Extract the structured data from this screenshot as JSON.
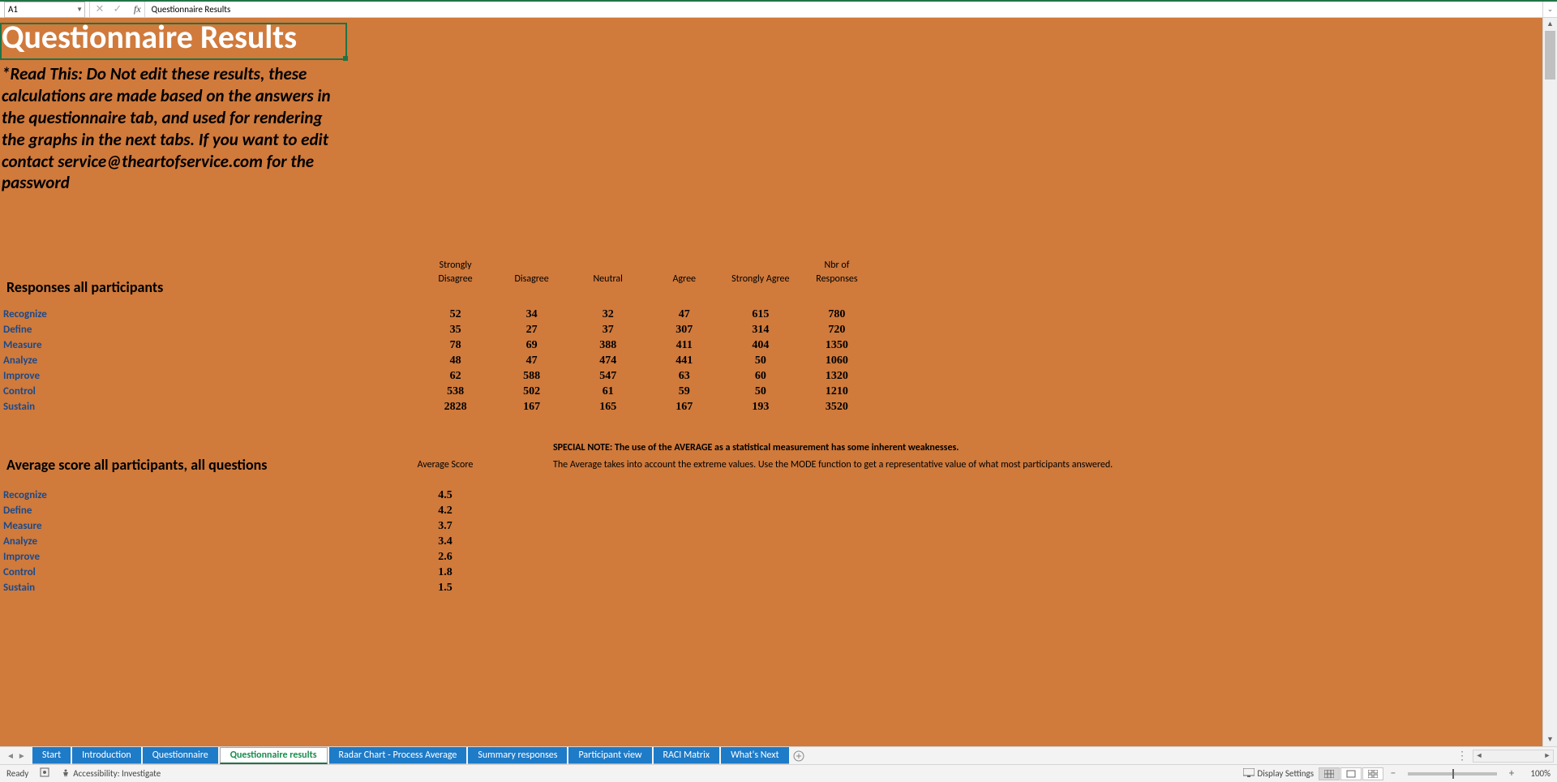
{
  "formula_bar": {
    "cell_ref": "A1",
    "content": "Questionnaire Results"
  },
  "sheet": {
    "title": "Questionnaire Results",
    "note": "*Read This: Do Not edit these results, these calculations are made based on the answers in the questionnaire tab, and used for rendering the graphs in the next tabs. If you want to edit contact service@theartofservice.com for the password",
    "section1_heading": "Responses all participants",
    "columns": [
      "Strongly Disagree",
      "Disagree",
      "Neutral",
      "Agree",
      "Strongly Agree",
      "Nbr of Responses"
    ],
    "rows": [
      {
        "label": "Recognize",
        "vals": [
          "52",
          "34",
          "32",
          "47",
          "615",
          "780"
        ]
      },
      {
        "label": "Define",
        "vals": [
          "35",
          "27",
          "37",
          "307",
          "314",
          "720"
        ]
      },
      {
        "label": "Measure",
        "vals": [
          "78",
          "69",
          "388",
          "411",
          "404",
          "1350"
        ]
      },
      {
        "label": "Analyze",
        "vals": [
          "48",
          "47",
          "474",
          "441",
          "50",
          "1060"
        ]
      },
      {
        "label": "Improve",
        "vals": [
          "62",
          "588",
          "547",
          "63",
          "60",
          "1320"
        ]
      },
      {
        "label": "Control",
        "vals": [
          "538",
          "502",
          "61",
          "59",
          "50",
          "1210"
        ]
      },
      {
        "label": "Sustain",
        "vals": [
          "2828",
          "167",
          "165",
          "167",
          "193",
          "3520"
        ]
      }
    ],
    "section2_heading": "Average score all participants, all questions",
    "avg_col": "Average Score",
    "avg_rows": [
      {
        "label": "Recognize",
        "val": "4.5"
      },
      {
        "label": "Define",
        "val": "4.2"
      },
      {
        "label": "Measure",
        "val": "3.7"
      },
      {
        "label": "Analyze",
        "val": "3.4"
      },
      {
        "label": "Improve",
        "val": "2.6"
      },
      {
        "label": "Control",
        "val": "1.8"
      },
      {
        "label": "Sustain",
        "val": "1.5"
      }
    ],
    "special_note_bold": "SPECIAL NOTE: The use of the AVERAGE as a statistical measurement has some inherent weaknesses.",
    "special_note_line": "The Average takes into account the extreme values. Use the MODE function to get a representative value of what most participants answered."
  },
  "tabs": [
    {
      "label": "Start",
      "active": false
    },
    {
      "label": "Introduction",
      "active": false
    },
    {
      "label": "Questionnaire",
      "active": false
    },
    {
      "label": "Questionnaire results",
      "active": true
    },
    {
      "label": "Radar Chart - Process Average",
      "active": false
    },
    {
      "label": "Summary responses",
      "active": false
    },
    {
      "label": "Participant view",
      "active": false
    },
    {
      "label": "RACI Matrix",
      "active": false
    },
    {
      "label": "What's Next",
      "active": false
    }
  ],
  "status": {
    "ready": "Ready",
    "accessibility": "Accessibility: Investigate",
    "display_settings": "Display Settings",
    "zoom": "100%"
  },
  "colors": {
    "sheet_bg": "#d07a3c",
    "excel_green": "#217346",
    "tab_blue": "#1e7bc8",
    "row_label": "#1b4a8a"
  }
}
